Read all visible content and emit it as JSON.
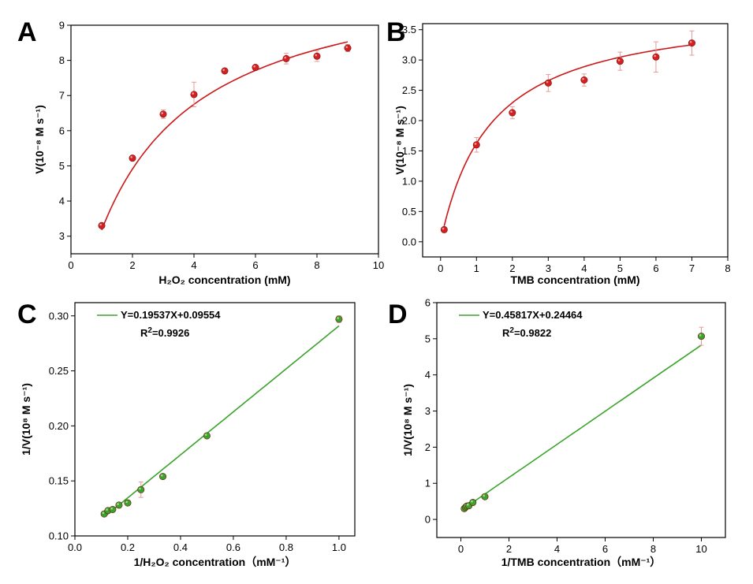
{
  "chart_data": [
    {
      "panel": "A",
      "type": "scatter",
      "xlabel": "H₂O₂ concentration (mM)",
      "ylabel": "V(10⁻⁸ M s⁻¹)",
      "xlim": [
        0,
        10
      ],
      "ylim": [
        2.5,
        9
      ],
      "xticks": [
        0,
        2,
        4,
        6,
        8,
        10
      ],
      "yticks": [
        3,
        4,
        5,
        6,
        7,
        8,
        9
      ],
      "series": [
        {
          "name": "data",
          "color": "#d42020",
          "x": [
            1,
            2,
            3,
            4,
            5,
            6,
            7,
            8,
            9
          ],
          "y": [
            3.3,
            5.22,
            6.47,
            7.03,
            7.7,
            7.8,
            8.05,
            8.12,
            8.35
          ],
          "err": [
            0,
            0.05,
            0.12,
            0.35,
            0,
            0,
            0.15,
            0.15,
            0.1
          ]
        }
      ],
      "fit": {
        "kind": "mm",
        "vmax": 10.8,
        "km": 2.4,
        "from": 1,
        "to": 9,
        "color": "#cc1818"
      }
    },
    {
      "panel": "B",
      "type": "scatter",
      "xlabel": "TMB concentration (mM)",
      "ylabel": "V(10⁻⁸ M s⁻¹)",
      "xlim": [
        -0.5,
        8
      ],
      "ylim": [
        -0.25,
        3.6
      ],
      "xticks": [
        0,
        1,
        2,
        3,
        4,
        5,
        6,
        7,
        8
      ],
      "yticks": [
        0.0,
        0.5,
        1.0,
        1.5,
        2.0,
        2.5,
        3.0,
        3.5
      ],
      "ytick_decimals": 1,
      "series": [
        {
          "name": "data",
          "color": "#d42020",
          "x": [
            0.1,
            1,
            2,
            3,
            4,
            5,
            6,
            7
          ],
          "y": [
            0.2,
            1.6,
            2.13,
            2.62,
            2.67,
            2.98,
            3.05,
            3.28
          ],
          "err": [
            0,
            0.12,
            0.1,
            0.14,
            0.1,
            0.15,
            0.25,
            0.2
          ]
        }
      ],
      "fit": {
        "kind": "mm",
        "vmax": 3.9,
        "km": 1.4,
        "from": 0.1,
        "to": 7,
        "color": "#cc1818"
      }
    },
    {
      "panel": "C",
      "type": "scatter",
      "xlabel": "1/H₂O₂ concentration（mM⁻¹）",
      "ylabel": "1/V(10⁸ M s⁻¹)",
      "xlim": [
        0,
        1.06
      ],
      "ylim": [
        0.1,
        0.312
      ],
      "xticks": [
        0.0,
        0.2,
        0.4,
        0.6,
        0.8,
        1.0
      ],
      "xtick_decimals": 1,
      "yticks": [
        0.1,
        0.15,
        0.2,
        0.25,
        0.3
      ],
      "ytick_decimals": 2,
      "series": [
        {
          "name": "data",
          "color": "#3aa32a",
          "x": [
            0.111,
            0.125,
            0.143,
            0.167,
            0.2,
            0.25,
            0.333,
            0.5,
            1.0
          ],
          "y": [
            0.12,
            0.123,
            0.124,
            0.128,
            0.13,
            0.142,
            0.154,
            0.191,
            0.297
          ],
          "err": [
            0,
            0,
            0,
            0,
            0,
            0.007,
            0,
            0,
            0.003
          ]
        }
      ],
      "fit": {
        "kind": "linear",
        "slope": 0.19537,
        "intercept": 0.09554,
        "from": 0.111,
        "to": 1.0,
        "color": "#3aa32a"
      },
      "legend": {
        "equation": "Y=0.19537X+0.09554",
        "r2_prefix": "R",
        "r2_sup": "2",
        "r2_value": "=0.9926"
      }
    },
    {
      "panel": "D",
      "type": "scatter",
      "xlabel": "1/TMB concentration（mM⁻¹）",
      "ylabel": "1/V(10⁸ M s⁻¹)",
      "xlim": [
        -1,
        11
      ],
      "ylim": [
        -0.5,
        6
      ],
      "xticks": [
        0,
        2,
        4,
        6,
        8,
        10
      ],
      "yticks": [
        0,
        1,
        2,
        3,
        4,
        5,
        6
      ],
      "series": [
        {
          "name": "data",
          "color": "#3aa32a",
          "x": [
            0.143,
            0.2,
            0.25,
            0.333,
            0.5,
            1.0,
            10
          ],
          "y": [
            0.3,
            0.34,
            0.37,
            0.38,
            0.47,
            0.63,
            5.07
          ],
          "err": [
            0,
            0,
            0,
            0,
            0,
            0,
            0.25
          ]
        }
      ],
      "fit": {
        "kind": "linear",
        "slope": 0.45817,
        "intercept": 0.24464,
        "from": 0.5,
        "to": 10,
        "color": "#3aa32a"
      },
      "legend": {
        "equation": "Y=0.45817X+0.24464",
        "r2_prefix": "R",
        "r2_sup": "2",
        "r2_value": "=0.9822"
      }
    }
  ]
}
